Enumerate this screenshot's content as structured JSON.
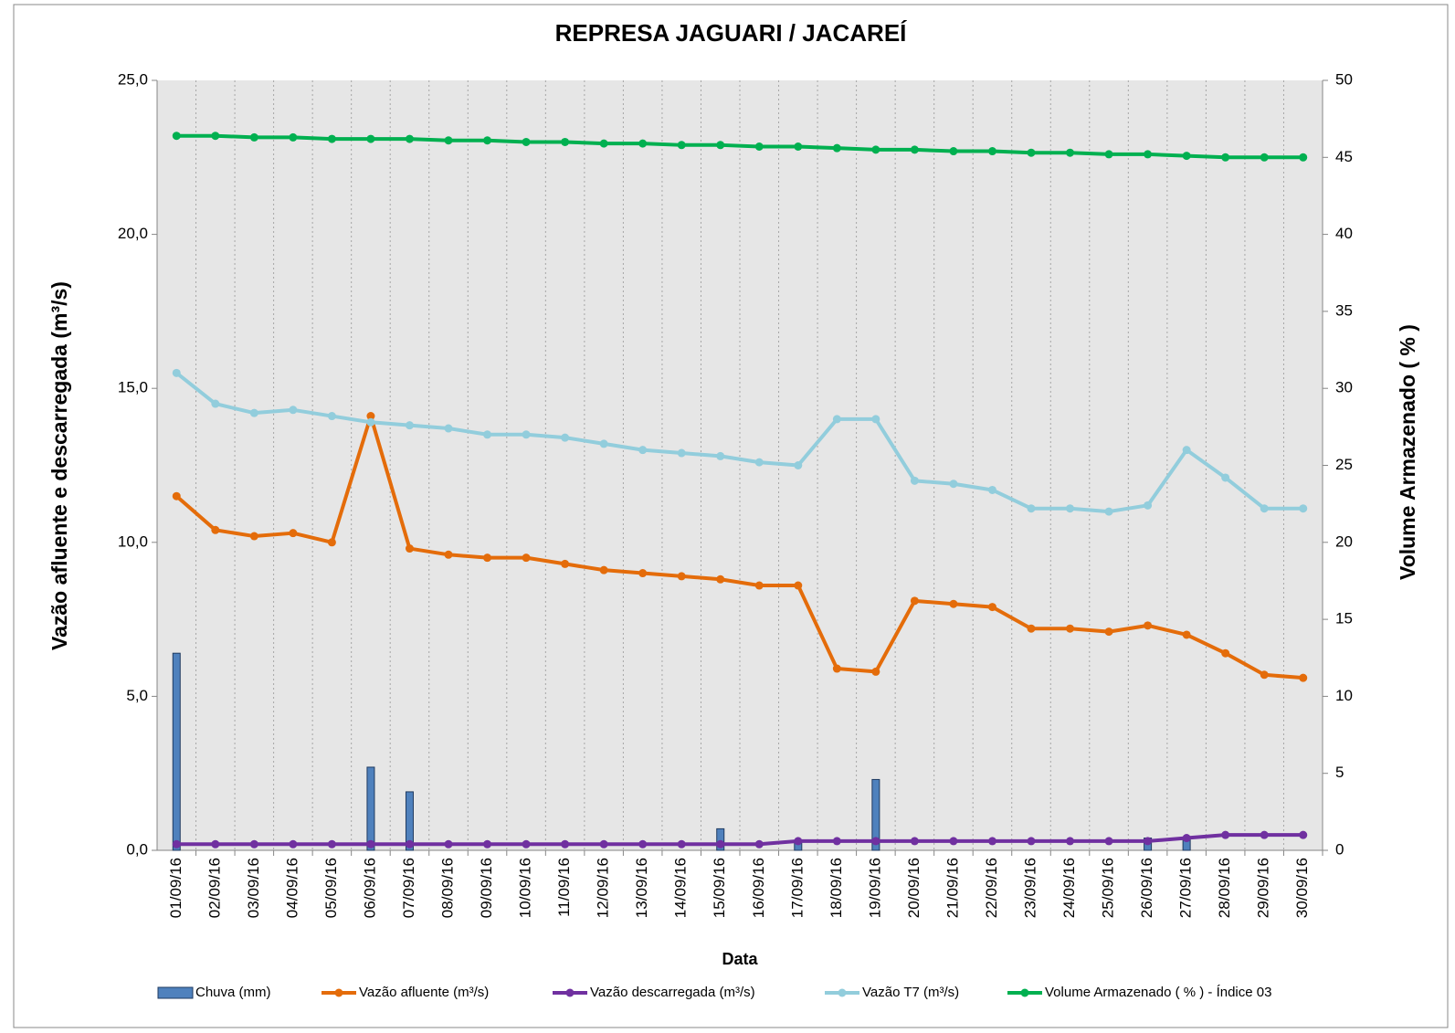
{
  "chart_data": {
    "type": "line",
    "title": "REPRESA JAGUARI / JACAREÍ",
    "xlabel": "Data",
    "ylabel": "Vazão afluente e descarregada (m³/s)",
    "y2label": "Volume Armazenado ( % )",
    "categories": [
      "01/09/16",
      "02/09/16",
      "03/09/16",
      "04/09/16",
      "05/09/16",
      "06/09/16",
      "07/09/16",
      "08/09/16",
      "09/09/16",
      "10/09/16",
      "11/09/16",
      "12/09/16",
      "13/09/16",
      "14/09/16",
      "15/09/16",
      "16/09/16",
      "17/09/16",
      "18/09/16",
      "19/09/16",
      "20/09/16",
      "21/09/16",
      "22/09/16",
      "23/09/16",
      "24/09/16",
      "25/09/16",
      "26/09/16",
      "27/09/16",
      "28/09/16",
      "29/09/16",
      "30/09/16"
    ],
    "ylim": [
      0,
      25
    ],
    "yticks": [
      {
        "value": 0,
        "label": "0,0"
      },
      {
        "value": 5,
        "label": "5,0"
      },
      {
        "value": 10,
        "label": "10,0"
      },
      {
        "value": 15,
        "label": "15,0"
      },
      {
        "value": 20,
        "label": "20,0"
      },
      {
        "value": 25,
        "label": "25,0"
      }
    ],
    "y2lim": [
      0,
      50
    ],
    "y2ticks": [
      0,
      5,
      10,
      15,
      20,
      25,
      30,
      35,
      40,
      45,
      50
    ],
    "legend": "bottom",
    "series": [
      {
        "name": "Chuva (mm)",
        "type": "bar",
        "color": "#4f81bd",
        "values": [
          6.4,
          0,
          0,
          0,
          0,
          2.7,
          1.9,
          0,
          0,
          0,
          0,
          0,
          0,
          0,
          0.7,
          0,
          0.3,
          0,
          2.3,
          0,
          0,
          0,
          0,
          0,
          0,
          0.4,
          0.4,
          0,
          0,
          0
        ]
      },
      {
        "name": "Vazão afluente (m³/s)",
        "type": "line",
        "color": "#e46c0a",
        "values": [
          11.5,
          10.4,
          10.2,
          10.3,
          10.0,
          14.1,
          9.8,
          9.6,
          9.5,
          9.5,
          9.3,
          9.1,
          9.0,
          8.9,
          8.8,
          8.6,
          8.6,
          5.9,
          5.8,
          8.1,
          8.0,
          7.9,
          7.2,
          7.2,
          7.1,
          7.3,
          7.0,
          6.4,
          5.7,
          5.6
        ]
      },
      {
        "name": "Vazão descarregada (m³/s)",
        "type": "line",
        "color": "#7030a0",
        "values": [
          0.2,
          0.2,
          0.2,
          0.2,
          0.2,
          0.2,
          0.2,
          0.2,
          0.2,
          0.2,
          0.2,
          0.2,
          0.2,
          0.2,
          0.2,
          0.2,
          0.3,
          0.3,
          0.3,
          0.3,
          0.3,
          0.3,
          0.3,
          0.3,
          0.3,
          0.3,
          0.4,
          0.5,
          0.5,
          0.5
        ]
      },
      {
        "name": "Vazão T7 (m³/s)",
        "type": "line",
        "color": "#92cddc",
        "values": [
          15.5,
          14.5,
          14.2,
          14.3,
          14.1,
          13.9,
          13.8,
          13.7,
          13.5,
          13.5,
          13.4,
          13.2,
          13.0,
          12.9,
          12.8,
          12.6,
          12.5,
          14.0,
          14.0,
          12.0,
          11.9,
          11.7,
          11.1,
          11.1,
          11.0,
          11.2,
          13.0,
          12.1,
          11.1,
          11.1
        ]
      },
      {
        "name": "Volume Armazenado ( % ) - Índice 03",
        "type": "line",
        "axis": "y2",
        "color": "#00b050",
        "values": [
          46.4,
          46.4,
          46.3,
          46.3,
          46.2,
          46.2,
          46.2,
          46.1,
          46.1,
          46.0,
          46.0,
          45.9,
          45.9,
          45.8,
          45.8,
          45.7,
          45.7,
          45.6,
          45.5,
          45.5,
          45.4,
          45.4,
          45.3,
          45.3,
          45.2,
          45.2,
          45.1,
          45.0,
          45.0,
          45.0
        ]
      }
    ]
  }
}
